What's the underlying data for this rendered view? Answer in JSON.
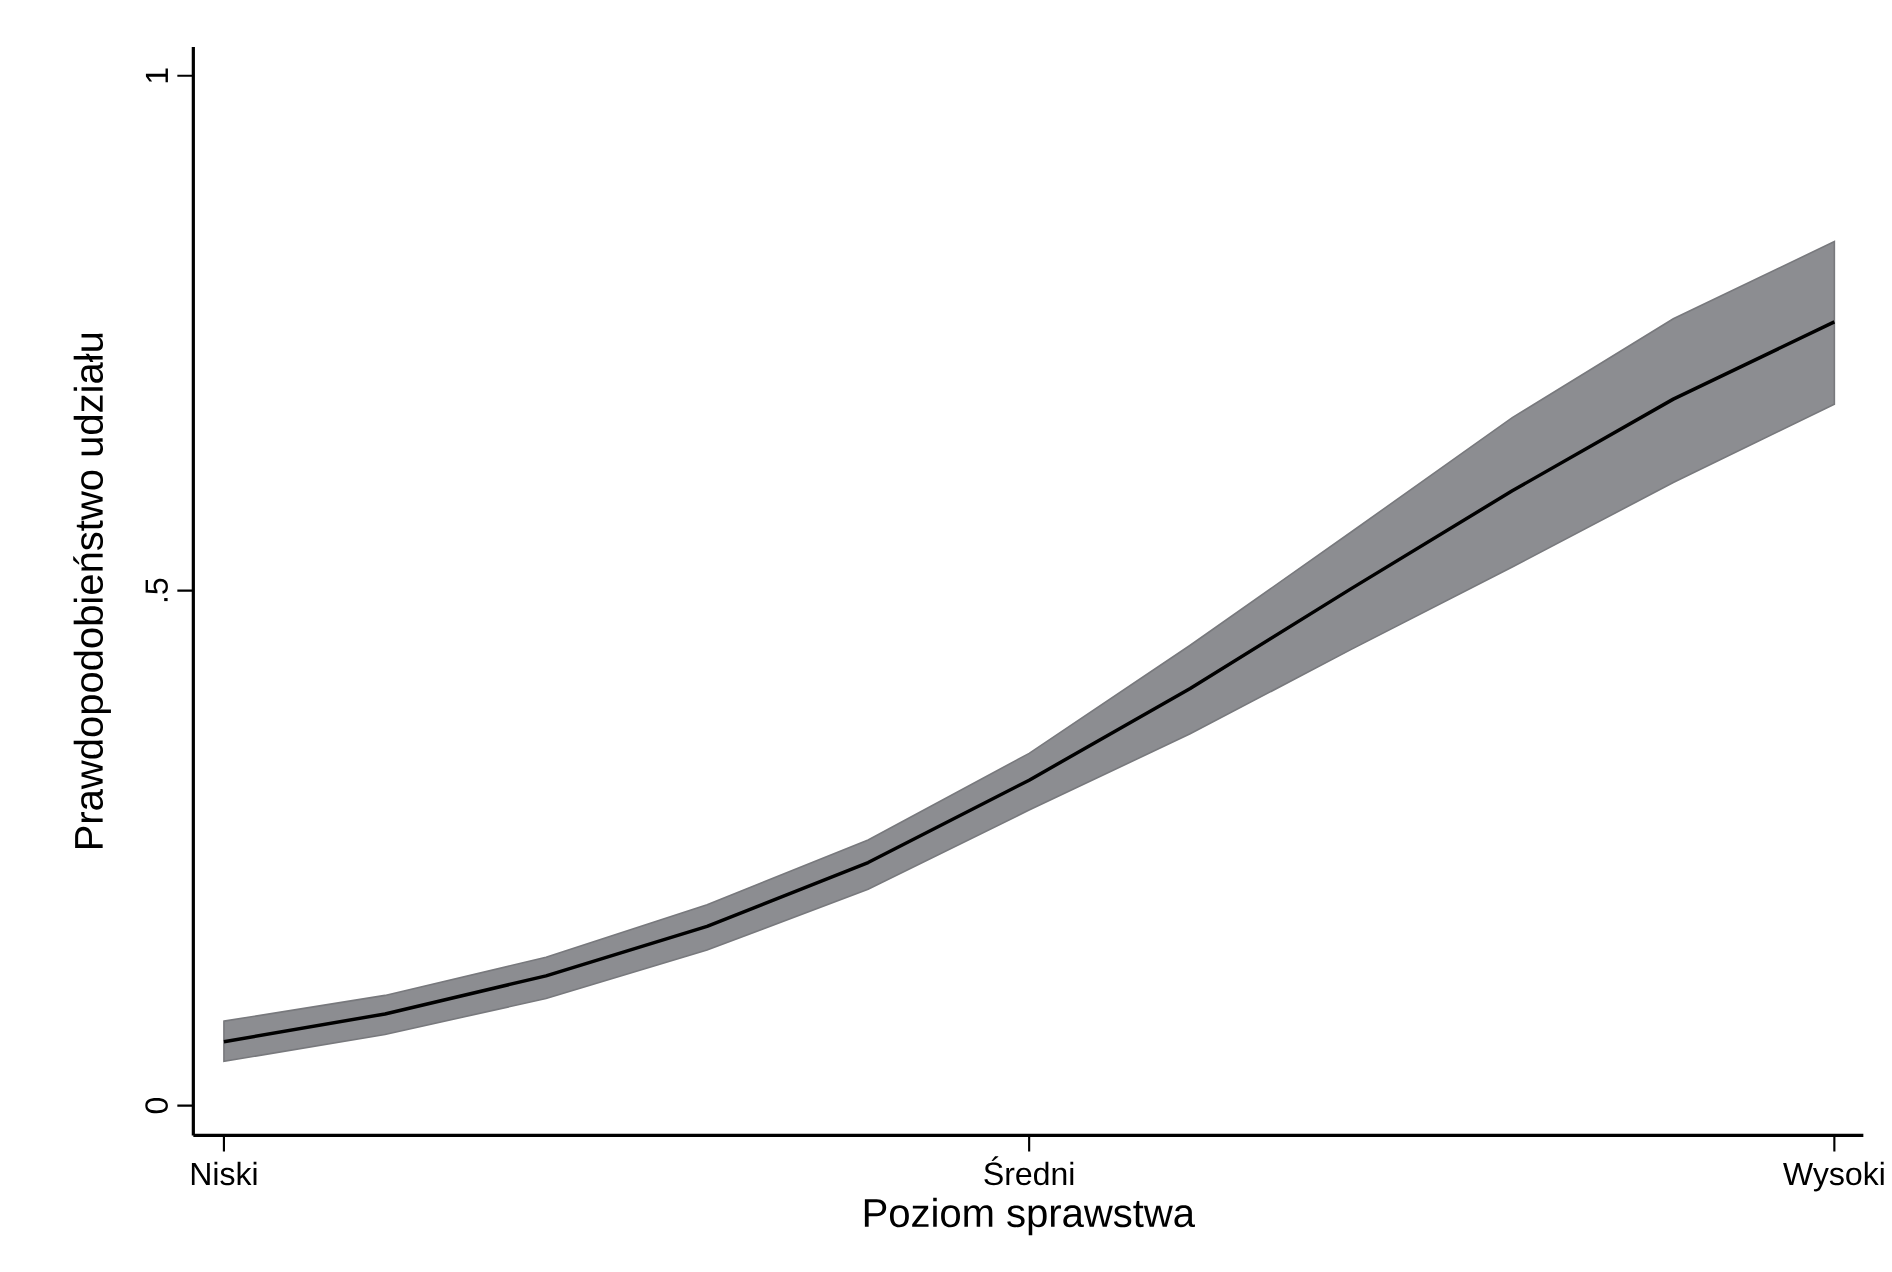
{
  "chart_data": {
    "type": "line",
    "xlabel": "Poziom sprawstwa",
    "ylabel": "Prawdopodobieństwo udziału",
    "categories": [
      "Niski",
      null,
      null,
      null,
      null,
      "Średni",
      null,
      null,
      null,
      null,
      "Wysoki"
    ],
    "ylim": [
      -0.029,
      1.028
    ],
    "yticks": [
      0,
      {
        "value": 0.5,
        "label": ".5"
      },
      1
    ],
    "series": [
      {
        "color": "#000000",
        "values": [
          0.062,
          0.089,
          0.126,
          0.174,
          0.236,
          0.316,
          0.405,
          0.502,
          0.597,
          0.686,
          0.761
        ],
        "lower": [
          0.043,
          0.069,
          0.104,
          0.151,
          0.21,
          0.287,
          0.361,
          0.443,
          0.523,
          0.605,
          0.681
        ],
        "upper": [
          0.082,
          0.107,
          0.144,
          0.195,
          0.258,
          0.342,
          0.447,
          0.557,
          0.668,
          0.764,
          0.839
        ]
      }
    ]
  }
}
